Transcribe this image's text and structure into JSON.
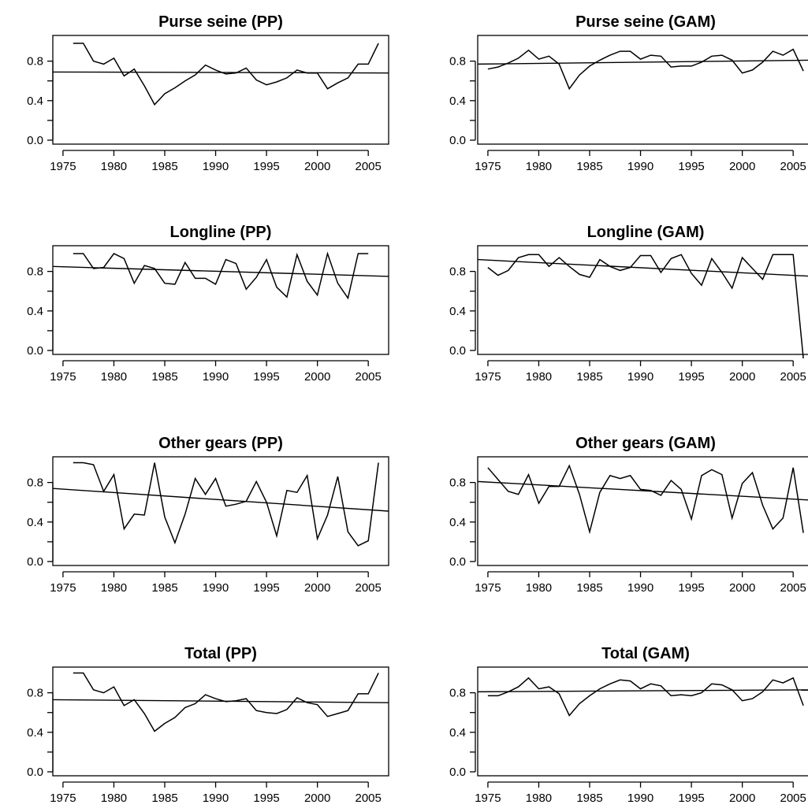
{
  "figure": {
    "background": "#ffffff",
    "line_color": "#000000"
  },
  "chart_data": [
    {
      "type": "line",
      "title": "Purse seine (PP)",
      "x": [
        1976,
        1977,
        1978,
        1979,
        1980,
        1981,
        1982,
        1983,
        1984,
        1985,
        1986,
        1987,
        1988,
        1989,
        1990,
        1991,
        1992,
        1993,
        1994,
        1995,
        1996,
        1997,
        1998,
        1999,
        2000,
        2001,
        2002,
        2003,
        2004,
        2005,
        2006
      ],
      "series": [
        {
          "values": [
            0.98,
            0.98,
            0.8,
            0.77,
            0.83,
            0.65,
            0.72,
            0.55,
            0.36,
            0.47,
            0.53,
            0.6,
            0.66,
            0.76,
            0.71,
            0.67,
            0.68,
            0.73,
            0.61,
            0.56,
            0.59,
            0.63,
            0.71,
            0.68,
            0.68,
            0.52,
            0.58,
            0.63,
            0.77,
            0.77,
            0.98
          ]
        }
      ],
      "trend": {
        "x": [
          1974,
          2007
        ],
        "y": [
          0.69,
          0.68
        ]
      },
      "xlim": [
        1974,
        2007
      ],
      "xticks": [
        1975,
        1980,
        1985,
        1990,
        1995,
        2000,
        2005
      ],
      "ylim": [
        -0.04,
        1.06
      ],
      "yticks": [
        0.0,
        0.4,
        0.8
      ],
      "yminor": [
        0.2,
        0.6
      ],
      "grid": false
    },
    {
      "type": "line",
      "title": "Purse seine (GAM)",
      "x": [
        1975,
        1976,
        1977,
        1978,
        1979,
        1980,
        1981,
        1982,
        1983,
        1984,
        1985,
        1986,
        1987,
        1988,
        1989,
        1990,
        1991,
        1992,
        1993,
        1994,
        1995,
        1996,
        1997,
        1998,
        1999,
        2000,
        2001,
        2002,
        2003,
        2004,
        2005,
        2006
      ],
      "series": [
        {
          "values": [
            0.72,
            0.74,
            0.78,
            0.83,
            0.91,
            0.82,
            0.85,
            0.77,
            0.52,
            0.66,
            0.75,
            0.81,
            0.86,
            0.9,
            0.9,
            0.82,
            0.86,
            0.85,
            0.74,
            0.75,
            0.75,
            0.79,
            0.85,
            0.86,
            0.81,
            0.68,
            0.71,
            0.79,
            0.9,
            0.86,
            0.92,
            0.7
          ]
        }
      ],
      "trend": {
        "x": [
          1974,
          2007
        ],
        "y": [
          0.77,
          0.81
        ]
      },
      "xlim": [
        1974,
        2007
      ],
      "xticks": [
        1975,
        1980,
        1985,
        1990,
        1995,
        2000,
        2005
      ],
      "ylim": [
        -0.04,
        1.06
      ],
      "yticks": [
        0.0,
        0.4,
        0.8
      ],
      "yminor": [
        0.2,
        0.6
      ],
      "grid": false
    },
    {
      "type": "line",
      "title": "Longline (PP)",
      "x": [
        1976,
        1977,
        1978,
        1979,
        1980,
        1981,
        1982,
        1983,
        1984,
        1985,
        1986,
        1987,
        1988,
        1989,
        1990,
        1991,
        1992,
        1993,
        1994,
        1995,
        1996,
        1997,
        1998,
        1999,
        2000,
        2001,
        2002,
        2003,
        2004,
        2005
      ],
      "series": [
        {
          "values": [
            0.98,
            0.98,
            0.83,
            0.84,
            0.98,
            0.93,
            0.68,
            0.86,
            0.83,
            0.68,
            0.67,
            0.89,
            0.73,
            0.73,
            0.67,
            0.92,
            0.88,
            0.62,
            0.74,
            0.92,
            0.64,
            0.54,
            0.97,
            0.7,
            0.56,
            0.98,
            0.68,
            0.53,
            0.98,
            0.98
          ]
        }
      ],
      "trend": {
        "x": [
          1974,
          2007
        ],
        "y": [
          0.85,
          0.75
        ]
      },
      "xlim": [
        1974,
        2007
      ],
      "xticks": [
        1975,
        1980,
        1985,
        1990,
        1995,
        2000,
        2005
      ],
      "ylim": [
        -0.04,
        1.06
      ],
      "yticks": [
        0.0,
        0.4,
        0.8
      ],
      "yminor": [
        0.2,
        0.6
      ],
      "grid": false
    },
    {
      "type": "line",
      "title": "Longline (GAM)",
      "x": [
        1975,
        1976,
        1977,
        1978,
        1979,
        1980,
        1981,
        1982,
        1983,
        1984,
        1985,
        1986,
        1987,
        1988,
        1989,
        1990,
        1991,
        1992,
        1993,
        1994,
        1995,
        1996,
        1997,
        1998,
        1999,
        2000,
        2001,
        2002,
        2003,
        2004,
        2005,
        2006
      ],
      "series": [
        {
          "values": [
            0.84,
            0.76,
            0.81,
            0.94,
            0.97,
            0.97,
            0.85,
            0.94,
            0.85,
            0.77,
            0.74,
            0.92,
            0.85,
            0.81,
            0.84,
            0.96,
            0.96,
            0.79,
            0.93,
            0.97,
            0.78,
            0.66,
            0.93,
            0.79,
            0.63,
            0.94,
            0.83,
            0.72,
            0.97,
            0.97,
            0.97,
            -0.08
          ]
        }
      ],
      "trend": {
        "x": [
          1974,
          2007
        ],
        "y": [
          0.92,
          0.75
        ]
      },
      "xlim": [
        1974,
        2007
      ],
      "xticks": [
        1975,
        1980,
        1985,
        1990,
        1995,
        2000,
        2005
      ],
      "ylim": [
        -0.04,
        1.06
      ],
      "yticks": [
        0.0,
        0.4,
        0.8
      ],
      "yminor": [
        0.2,
        0.6
      ],
      "grid": false
    },
    {
      "type": "line",
      "title": "Other gears (PP)",
      "x": [
        1976,
        1977,
        1978,
        1979,
        1980,
        1981,
        1982,
        1983,
        1984,
        1985,
        1986,
        1987,
        1988,
        1989,
        1990,
        1991,
        1992,
        1993,
        1994,
        1995,
        1996,
        1997,
        1998,
        1999,
        2000,
        2001,
        2002,
        2003,
        2004,
        2005,
        2006
      ],
      "series": [
        {
          "values": [
            1.0,
            1.0,
            0.98,
            0.71,
            0.88,
            0.33,
            0.48,
            0.47,
            1.0,
            0.45,
            0.19,
            0.48,
            0.84,
            0.68,
            0.84,
            0.56,
            0.58,
            0.61,
            0.81,
            0.6,
            0.26,
            0.72,
            0.7,
            0.87,
            0.23,
            0.47,
            0.86,
            0.3,
            0.16,
            0.21,
            1.0
          ]
        }
      ],
      "trend": {
        "x": [
          1974,
          2007
        ],
        "y": [
          0.74,
          0.51
        ]
      },
      "xlim": [
        1974,
        2007
      ],
      "xticks": [
        1975,
        1980,
        1985,
        1990,
        1995,
        2000,
        2005
      ],
      "ylim": [
        -0.04,
        1.06
      ],
      "yticks": [
        0.0,
        0.4,
        0.8
      ],
      "yminor": [
        0.2,
        0.6
      ],
      "grid": false
    },
    {
      "type": "line",
      "title": "Other gears (GAM)",
      "x": [
        1975,
        1976,
        1977,
        1978,
        1979,
        1980,
        1981,
        1982,
        1983,
        1984,
        1985,
        1986,
        1987,
        1988,
        1989,
        1990,
        1991,
        1992,
        1993,
        1994,
        1995,
        1996,
        1997,
        1998,
        1999,
        2000,
        2001,
        2002,
        2003,
        2004,
        2005,
        2006
      ],
      "series": [
        {
          "values": [
            0.95,
            0.83,
            0.71,
            0.68,
            0.88,
            0.59,
            0.76,
            0.76,
            0.97,
            0.68,
            0.3,
            0.7,
            0.87,
            0.84,
            0.87,
            0.73,
            0.72,
            0.67,
            0.82,
            0.73,
            0.43,
            0.87,
            0.93,
            0.88,
            0.44,
            0.79,
            0.9,
            0.57,
            0.33,
            0.44,
            0.95,
            0.29
          ]
        }
      ],
      "trend": {
        "x": [
          1974,
          2007
        ],
        "y": [
          0.81,
          0.62
        ]
      },
      "xlim": [
        1974,
        2007
      ],
      "xticks": [
        1975,
        1980,
        1985,
        1990,
        1995,
        2000,
        2005
      ],
      "ylim": [
        -0.04,
        1.06
      ],
      "yticks": [
        0.0,
        0.4,
        0.8
      ],
      "yminor": [
        0.2,
        0.6
      ],
      "grid": false
    },
    {
      "type": "line",
      "title": "Total (PP)",
      "x": [
        1976,
        1977,
        1978,
        1979,
        1980,
        1981,
        1982,
        1983,
        1984,
        1985,
        1986,
        1987,
        1988,
        1989,
        1990,
        1991,
        1992,
        1993,
        1994,
        1995,
        1996,
        1997,
        1998,
        1999,
        2000,
        2001,
        2002,
        2003,
        2004,
        2005,
        2006
      ],
      "series": [
        {
          "values": [
            1.0,
            1.0,
            0.83,
            0.8,
            0.86,
            0.67,
            0.73,
            0.59,
            0.41,
            0.49,
            0.55,
            0.65,
            0.69,
            0.78,
            0.74,
            0.71,
            0.72,
            0.74,
            0.62,
            0.6,
            0.59,
            0.63,
            0.75,
            0.7,
            0.68,
            0.56,
            0.59,
            0.62,
            0.79,
            0.79,
            1.0
          ]
        }
      ],
      "trend": {
        "x": [
          1974,
          2007
        ],
        "y": [
          0.73,
          0.7
        ]
      },
      "xlim": [
        1974,
        2007
      ],
      "xticks": [
        1975,
        1980,
        1985,
        1990,
        1995,
        2000,
        2005
      ],
      "ylim": [
        -0.04,
        1.06
      ],
      "yticks": [
        0.0,
        0.4,
        0.8
      ],
      "yminor": [
        0.2,
        0.6
      ],
      "grid": false
    },
    {
      "type": "line",
      "title": "Total (GAM)",
      "x": [
        1975,
        1976,
        1977,
        1978,
        1979,
        1980,
        1981,
        1982,
        1983,
        1984,
        1985,
        1986,
        1987,
        1988,
        1989,
        1990,
        1991,
        1992,
        1993,
        1994,
        1995,
        1996,
        1997,
        1998,
        1999,
        2000,
        2001,
        2002,
        2003,
        2004,
        2005,
        2006
      ],
      "series": [
        {
          "values": [
            0.77,
            0.77,
            0.81,
            0.86,
            0.95,
            0.84,
            0.86,
            0.79,
            0.57,
            0.69,
            0.77,
            0.84,
            0.89,
            0.93,
            0.92,
            0.84,
            0.89,
            0.87,
            0.77,
            0.78,
            0.77,
            0.8,
            0.89,
            0.88,
            0.83,
            0.72,
            0.74,
            0.81,
            0.93,
            0.9,
            0.95,
            0.67
          ]
        }
      ],
      "trend": {
        "x": [
          1974,
          2007
        ],
        "y": [
          0.81,
          0.83
        ]
      },
      "xlim": [
        1974,
        2007
      ],
      "xticks": [
        1975,
        1980,
        1985,
        1990,
        1995,
        2000,
        2005
      ],
      "ylim": [
        -0.04,
        1.06
      ],
      "yticks": [
        0.0,
        0.4,
        0.8
      ],
      "yminor": [
        0.2,
        0.6
      ],
      "grid": false
    }
  ]
}
